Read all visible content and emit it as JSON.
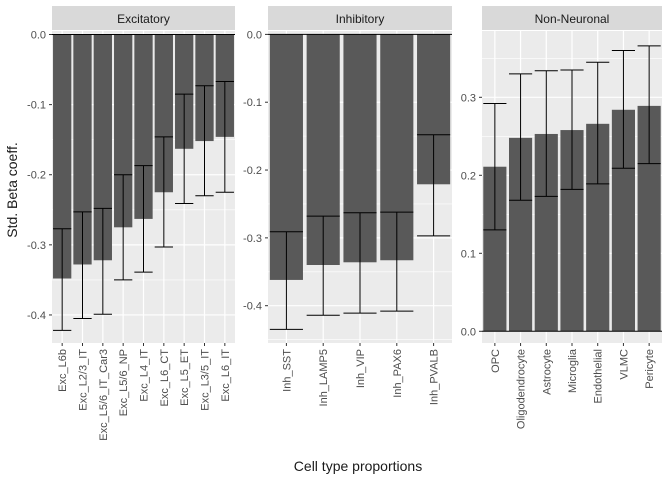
{
  "labels": {
    "ylabel": "Std. Beta coeff.",
    "xlabel": "Cell type proportions"
  },
  "style": {
    "panel_bg": "#ebebeb",
    "strip_bg": "#d9d9d9",
    "grid": "#ffffff",
    "bar_fill": "#595959",
    "errorbar": "#000000",
    "text": "#1a1a1a",
    "tick_text": "#4d4d4d"
  },
  "chart_data": [
    {
      "type": "bar",
      "title": "Excitatory",
      "categories": [
        "Exc_L6b",
        "Exc_L2/3_IT",
        "Exc_L5/6_IT_Car3",
        "Exc_L5/6_NP",
        "Exc_L4_IT",
        "Exc_L6_CT",
        "Exc_L5_ET",
        "Exc_L3/5_IT",
        "Exc_L6_IT"
      ],
      "values": [
        -0.348,
        -0.328,
        -0.322,
        -0.275,
        -0.263,
        -0.225,
        -0.163,
        -0.152,
        -0.146
      ],
      "error_low": [
        -0.422,
        -0.405,
        -0.399,
        -0.35,
        -0.339,
        -0.303,
        -0.241,
        -0.23,
        -0.225
      ],
      "error_high": [
        -0.277,
        -0.253,
        -0.248,
        -0.2,
        -0.187,
        -0.146,
        -0.085,
        -0.073,
        -0.067
      ],
      "ylim": [
        -0.44,
        0.005
      ],
      "yticks": [
        0.0,
        -0.1,
        -0.2,
        -0.3,
        -0.4
      ],
      "yticklabels": [
        "0.0",
        "-0.1",
        "-0.2",
        "-0.3",
        "-0.4"
      ],
      "grid": true
    },
    {
      "type": "bar",
      "title": "Inhibitory",
      "categories": [
        "Inh_SST",
        "Inh_LAMP5",
        "Inh_VIP",
        "Inh_PAX6",
        "Inh_PVALB"
      ],
      "values": [
        -0.362,
        -0.34,
        -0.336,
        -0.333,
        -0.221
      ],
      "error_low": [
        -0.435,
        -0.414,
        -0.411,
        -0.408,
        -0.297
      ],
      "error_high": [
        -0.291,
        -0.268,
        -0.263,
        -0.262,
        -0.148
      ],
      "ylim": [
        -0.455,
        0.005
      ],
      "yticks": [
        0.0,
        -0.1,
        -0.2,
        -0.3,
        -0.4
      ],
      "yticklabels": [
        "0.0",
        "-0.1",
        "-0.2",
        "-0.3",
        "-0.4"
      ],
      "grid": true
    },
    {
      "type": "bar",
      "title": "Non-Neuronal",
      "categories": [
        "OPC",
        "Oligodendrocyte",
        "Astrocyte",
        "Microglia",
        "Endothelial",
        "VLMC",
        "Pericyte"
      ],
      "values": [
        0.211,
        0.248,
        0.253,
        0.258,
        0.266,
        0.284,
        0.289
      ],
      "error_low": [
        0.13,
        0.168,
        0.173,
        0.182,
        0.189,
        0.209,
        0.215
      ],
      "error_high": [
        0.292,
        0.33,
        0.334,
        0.335,
        0.345,
        0.36,
        0.366
      ],
      "ylim": [
        -0.015,
        0.385
      ],
      "yticks": [
        0.0,
        0.1,
        0.2,
        0.3
      ],
      "yticklabels": [
        "0.0",
        "0.1",
        "0.2",
        "0.3"
      ],
      "grid": true
    }
  ]
}
